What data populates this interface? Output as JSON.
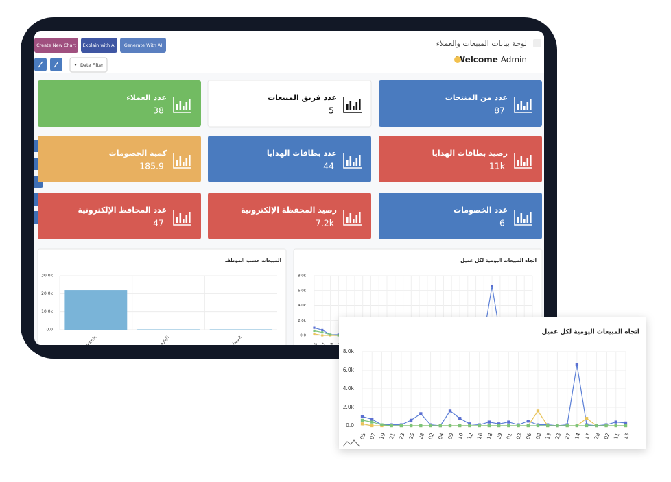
{
  "header": {
    "title": "لوحة بيانات المبيعات والعملاء",
    "welcome": "Welcome",
    "user": "Admin"
  },
  "toolbar": {
    "buttons": [
      {
        "label": "Create New Chart",
        "color": "#a0507f"
      },
      {
        "label": "Explain with AI",
        "color": "#3f56a3"
      },
      {
        "label": "Generate With AI",
        "color": "#5a7fc0"
      }
    ],
    "filter": "Date Filter"
  },
  "cards": [
    {
      "title": "عدد من المنتجات",
      "value": "87",
      "color": "#4a7bbf"
    },
    {
      "title": "عدد فريق المبيعات",
      "value": "5",
      "color": "#ffffff"
    },
    {
      "title": "عدد العملاء",
      "value": "38",
      "color": "#72bb62"
    },
    {
      "title": "رصيد بطاقات الهدايا",
      "value": "11k",
      "color": "#d65a52"
    },
    {
      "title": "عدد بطاقات الهدايا",
      "value": "44",
      "color": "#4a7bbf"
    },
    {
      "title": "كمية الخصومات",
      "value": "185.9",
      "color": "#e8b060"
    },
    {
      "title": "عدد الخصومات",
      "value": "6",
      "color": "#4a7bbf"
    },
    {
      "title": "رصيد المحفظة الإلكترونية",
      "value": "7.2k",
      "color": "#d65a52"
    },
    {
      "title": "عدد المحافظ الإلكترونية",
      "value": "47",
      "color": "#d65a52"
    }
  ],
  "charts": [
    {
      "type": "bar",
      "title": "المبيعات حسب الموظف",
      "categories": [
        "Admin",
        "الإدارة",
        "المبيعات"
      ],
      "values": [
        22000,
        200,
        200
      ],
      "color": "#7ab4d8",
      "ylim": [
        0,
        30000
      ],
      "yticks": [
        {
          "value": 0,
          "label": "0.0"
        },
        {
          "value": 10000,
          "label": "10.0k"
        },
        {
          "value": 20000,
          "label": "20.0k"
        },
        {
          "value": 30000,
          "label": "30.0k"
        }
      ],
      "grid": true
    },
    {
      "type": "line",
      "title": "اتجاه المبيعات اليومية لكل عميل",
      "categories": [
        "05",
        "07",
        "19",
        "21",
        "23",
        "25",
        "28",
        "02",
        "04",
        "09",
        "10",
        "12",
        "16",
        "18",
        "29",
        "01",
        "03",
        "06",
        "08",
        "13",
        "23",
        "27",
        "14",
        "17",
        "28",
        "02",
        "11",
        "15"
      ],
      "series": [
        {
          "color": "#5b7fd6",
          "values": [
            1000,
            700,
            100,
            100,
            100,
            600,
            1300,
            100,
            0,
            1600,
            800,
            200,
            100,
            400,
            200,
            400,
            100,
            500,
            100,
            100,
            0,
            100,
            6600,
            100,
            0,
            100,
            400,
            300
          ]
        },
        {
          "color": "#e8c35a",
          "values": [
            200,
            0,
            0,
            0,
            0,
            0,
            0,
            0,
            0,
            0,
            0,
            0,
            0,
            0,
            0,
            0,
            0,
            0,
            1600,
            0,
            0,
            0,
            0,
            800,
            0,
            0,
            0,
            0
          ]
        },
        {
          "color": "#7cc47a",
          "values": [
            600,
            400,
            100,
            0,
            0,
            0,
            0,
            0,
            0,
            0,
            0,
            0,
            0,
            0,
            0,
            0,
            0,
            0,
            0,
            0,
            0,
            0,
            0,
            0,
            0,
            0,
            0,
            0
          ]
        }
      ],
      "ylim": [
        0,
        8000
      ],
      "yticks": [
        {
          "value": 0,
          "label": "0.0"
        },
        {
          "value": 2000,
          "label": "2.0k"
        },
        {
          "value": 4000,
          "label": "4.0k"
        },
        {
          "value": 6000,
          "label": "6.0k"
        },
        {
          "value": 8000,
          "label": "8.0k"
        }
      ],
      "grid": true
    }
  ]
}
